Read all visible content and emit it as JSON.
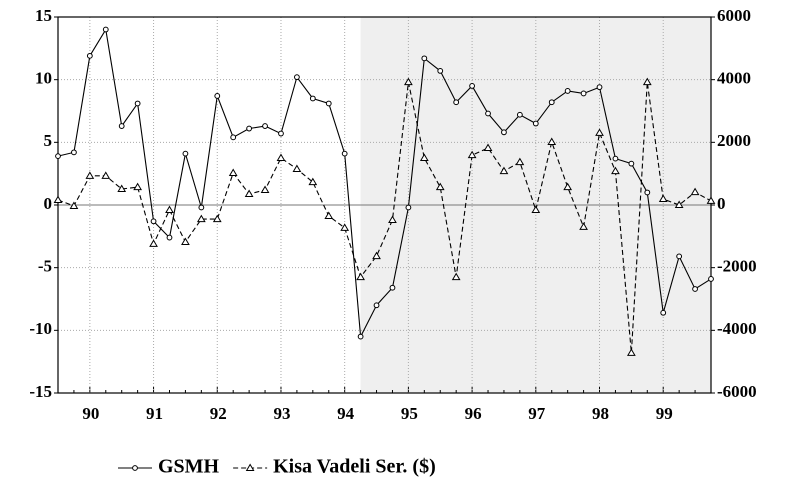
{
  "chart_data": {
    "type": "line",
    "categories": [
      null,
      null,
      "90",
      null,
      null,
      null,
      "91",
      null,
      null,
      null,
      "92",
      null,
      null,
      null,
      "93",
      null,
      null,
      null,
      "94",
      null,
      null,
      null,
      "95",
      null,
      null,
      null,
      "96",
      null,
      null,
      null,
      "97",
      null,
      null,
      null,
      "98",
      null,
      null,
      null,
      "99",
      null,
      null,
      null
    ],
    "series": [
      {
        "name": "GSMH",
        "color": "#000000",
        "dash": false,
        "marker": "circle",
        "axis": "y",
        "values": [
          3.9,
          4.2,
          11.9,
          14.0,
          6.3,
          8.1,
          -1.3,
          -2.6,
          4.1,
          -0.2,
          8.7,
          5.4,
          6.1,
          6.3,
          5.7,
          10.2,
          8.5,
          8.1,
          4.1,
          -10.5,
          -8.0,
          -6.6,
          -0.2,
          11.7,
          10.7,
          8.2,
          9.5,
          7.3,
          5.8,
          7.2,
          6.5,
          8.2,
          9.1,
          8.9,
          9.4,
          3.7,
          3.3,
          1.0,
          -8.6,
          -4.1,
          -6.7,
          -5.9
        ]
      },
      {
        "name": "Kisa Vadeli Ser. ($)",
        "color": "#000000",
        "dash": true,
        "marker": "triangle",
        "axis": "y2",
        "values": [
          160,
          -30,
          930,
          930,
          510,
          570,
          -1240,
          -160,
          -1180,
          -450,
          -450,
          1020,
          350,
          480,
          1500,
          1150,
          730,
          -350,
          -730,
          -2300,
          -1630,
          -480,
          3920,
          1500,
          570,
          -2300,
          1590,
          1820,
          1080,
          1370,
          -160,
          2010,
          570,
          -700,
          2300,
          1080,
          -4720,
          3920,
          190,
          0,
          410,
          130
        ]
      }
    ],
    "ylim": [
      -15,
      15
    ],
    "yticks": [
      15,
      10,
      5,
      0,
      -5,
      -10,
      -15
    ],
    "y2lim": [
      -6000,
      6000
    ],
    "y2ticks": [
      6000,
      4000,
      2000,
      0,
      -2000,
      -4000,
      -6000
    ],
    "grid": true,
    "shade": {
      "from": 19,
      "to": 41,
      "color": "#efefef"
    },
    "legend": "bottom"
  }
}
